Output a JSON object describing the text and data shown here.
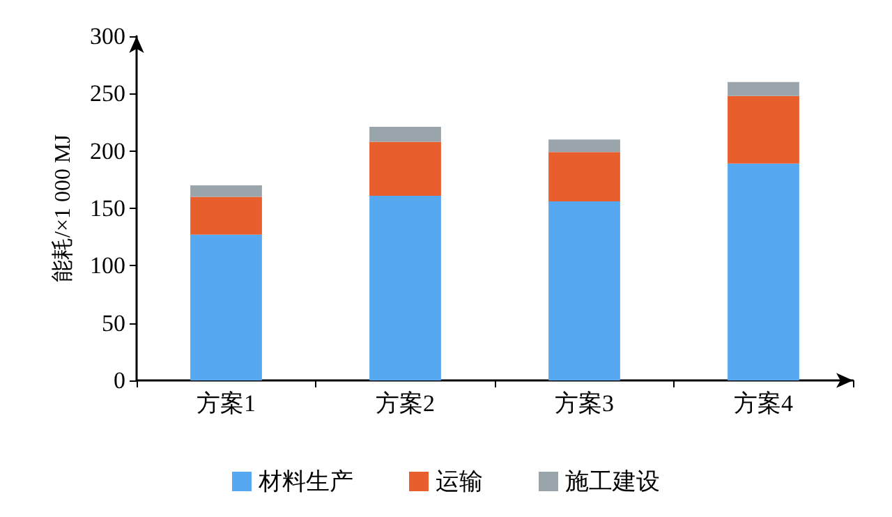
{
  "chart_data": {
    "type": "bar",
    "stacked": true,
    "ylabel": "能耗/×1 000 MJ",
    "categories": [
      "方案1",
      "方案2",
      "方案3",
      "方案4"
    ],
    "series": [
      {
        "name": "材料生产",
        "color": "#56a9f0",
        "values": [
          127,
          161,
          156,
          189
        ]
      },
      {
        "name": "运输",
        "color": "#e85e2c",
        "values": [
          33,
          47,
          43,
          59
        ]
      },
      {
        "name": "施工建设",
        "color": "#9aa5ab",
        "values": [
          10,
          13,
          11,
          12
        ]
      }
    ],
    "ylim": [
      0,
      300
    ],
    "yticks": [
      0,
      50,
      100,
      150,
      200,
      250,
      300
    ],
    "grid": false,
    "legend": "bottom"
  }
}
